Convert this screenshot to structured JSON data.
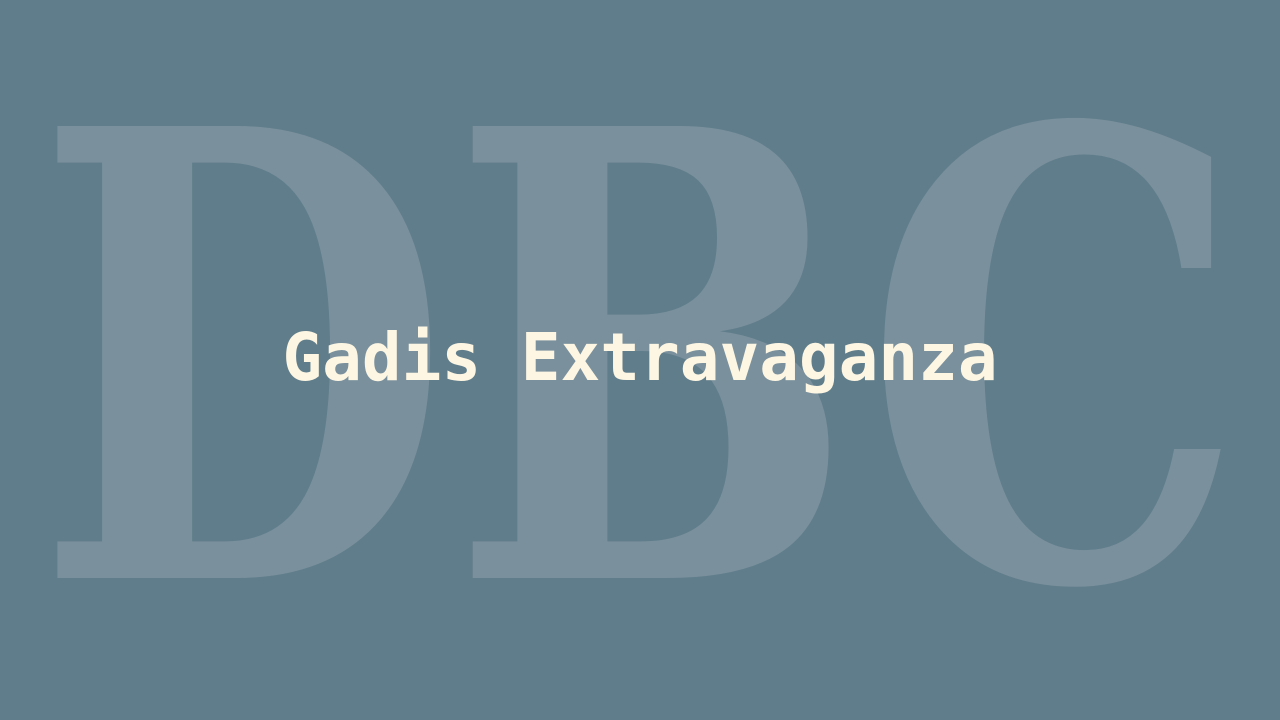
{
  "background": {
    "letters": "DBC",
    "color": "#607d8b",
    "letter_color": "#7a909d"
  },
  "title": {
    "text": "Gadis Extravaganza",
    "color": "#fdf6e3"
  }
}
